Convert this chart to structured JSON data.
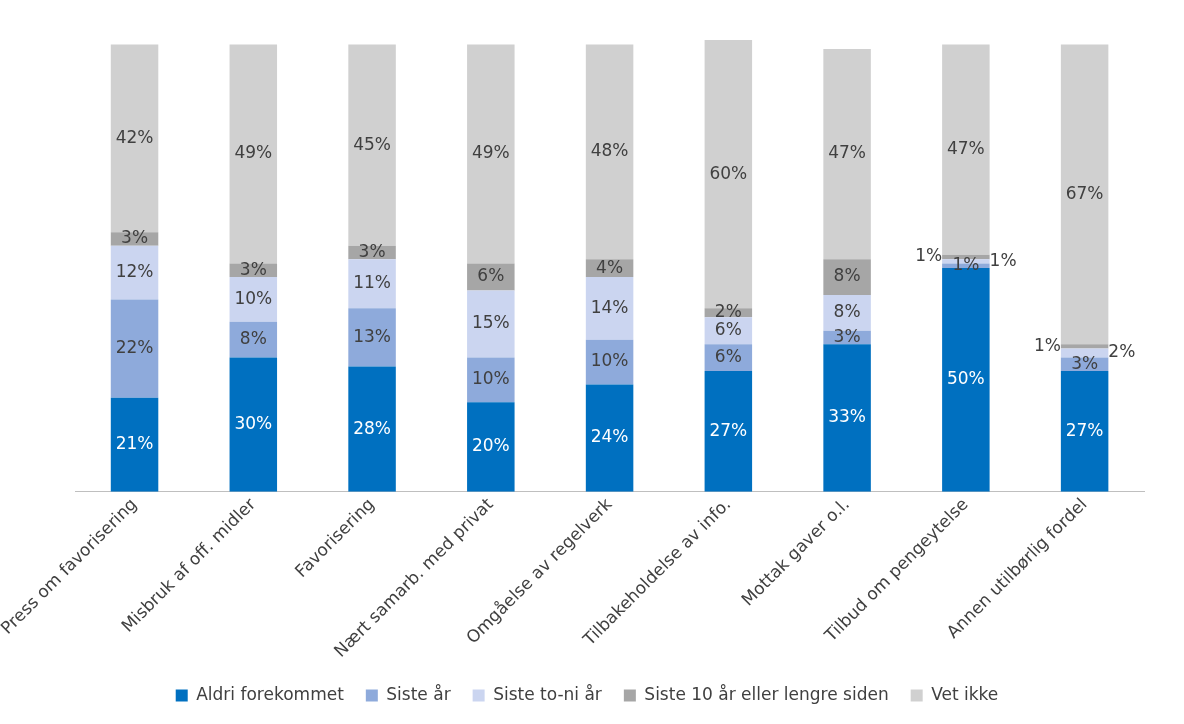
{
  "chart_data": {
    "type": "bar",
    "stacked": true,
    "categories": [
      "Press om favorisering",
      "Misbruk af off. midler",
      "Favorisering",
      "Nært samarb. med privat",
      "Omgåelse av regelverk",
      "Tilbakeholdelse av info.",
      "Mottak gaver o.l.",
      "Tilbud om pengeytelse",
      "Annen utilbørlig fordel"
    ],
    "series": [
      {
        "name": "Aldri forekommet",
        "color": "#0070c0",
        "values": [
          21,
          30,
          28,
          20,
          24,
          27,
          33,
          50,
          27
        ],
        "value_labels": [
          "21%",
          "30%",
          "28%",
          "20%",
          "24%",
          "27%",
          "33%",
          "50%",
          "27%"
        ]
      },
      {
        "name": "Siste år",
        "color": "#8eaadb",
        "values": [
          22,
          8,
          13,
          10,
          10,
          6,
          3,
          1,
          3
        ],
        "value_labels": [
          "22%",
          "8%",
          "13%",
          "10%",
          "10%",
          "6%",
          "3%",
          "1%",
          "3%"
        ]
      },
      {
        "name": "Siste to-ni år",
        "color": "#cbd5f0",
        "values": [
          12,
          10,
          11,
          15,
          14,
          6,
          8,
          1,
          2
        ],
        "value_labels": [
          "12%",
          "10%",
          "11%",
          "15%",
          "14%",
          "6%",
          "8%",
          "1%",
          "2%"
        ]
      },
      {
        "name": "Siste 10 år eller lengre siden",
        "color": "#a6a6a6",
        "values": [
          3,
          3,
          3,
          6,
          4,
          2,
          8,
          1,
          1
        ],
        "value_labels": [
          "3%",
          "3%",
          "3%",
          "6%",
          "4%",
          "2%",
          "8%",
          "1%",
          "1%"
        ]
      },
      {
        "name": "Vet ikke",
        "color": "#d0d0d0",
        "values": [
          42,
          49,
          45,
          49,
          48,
          60,
          47,
          47,
          67
        ],
        "value_labels": [
          "42%",
          "49%",
          "45%",
          "49%",
          "48%",
          "60%",
          "47%",
          "47%",
          "67%"
        ]
      }
    ],
    "tick_labels": "x",
    "legend": "bottom",
    "grid": false
  }
}
